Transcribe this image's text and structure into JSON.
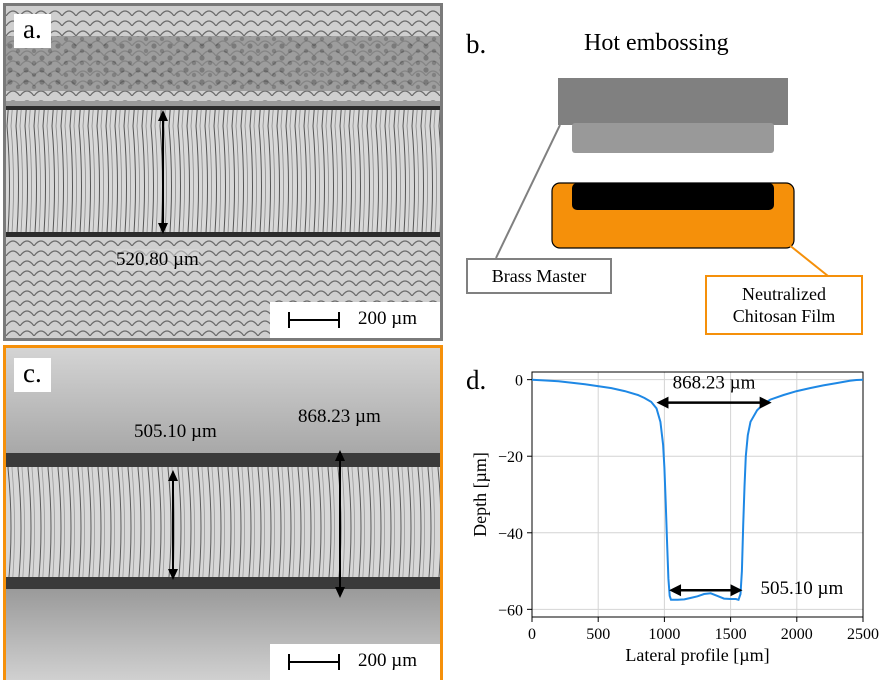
{
  "panel_a": {
    "letter": "a.",
    "measurement": "520.80 µm",
    "scale_label": "200 µm",
    "border_color": "#7a7a7a"
  },
  "panel_b": {
    "letter": "b.",
    "title": "Hot embossing",
    "label_master": "Brass Master",
    "label_film_line1": "Neutralized",
    "label_film_line2": "Chitosan Film",
    "master_color": "#808080",
    "film_color": "#f5900a",
    "mold_color": "#000000"
  },
  "panel_c": {
    "letter": "c.",
    "measurement_left": "505.10 µm",
    "measurement_right": "868.23 µm",
    "scale_label": "200 µm",
    "border_color": "#f5900a"
  },
  "panel_d": {
    "letter": "d."
  },
  "chart_data": {
    "type": "line",
    "xlabel": "Lateral profile [µm]",
    "ylabel": "Depth [µm]",
    "xlim": [
      0,
      2500
    ],
    "ylim": [
      -62,
      2
    ],
    "xticks": [
      0,
      500,
      1000,
      1500,
      2000,
      2500
    ],
    "yticks": [
      0,
      -20,
      -40,
      -60
    ],
    "grid": true,
    "line_color": "#1e88e5",
    "annotations": [
      {
        "text": "868.23 µm",
        "x1": 940,
        "x2": 1810,
        "y": -6
      },
      {
        "text": "505.10 µm",
        "x1": 1035,
        "x2": 1590,
        "y": -55
      }
    ],
    "series": [
      {
        "x": [
          0,
          200,
          400,
          600,
          700,
          800,
          850,
          900,
          940,
          970,
          990,
          1000,
          1010,
          1020,
          1030,
          1040,
          1050,
          1070,
          1100,
          1150,
          1200,
          1250,
          1300,
          1350,
          1400,
          1450,
          1500,
          1540,
          1560,
          1575,
          1585,
          1595,
          1605,
          1615,
          1630,
          1650,
          1700,
          1750,
          1800,
          1900,
          2000,
          2100,
          2200,
          2300,
          2400,
          2450,
          2500
        ],
        "y": [
          0,
          -0.4,
          -1.2,
          -2.2,
          -3,
          -4,
          -4.8,
          -5.8,
          -7.5,
          -11,
          -17,
          -23,
          -32,
          -42,
          -52,
          -56.5,
          -57.5,
          -57.5,
          -57.5,
          -57.4,
          -57,
          -56.6,
          -56,
          -55.8,
          -56.5,
          -57.2,
          -57.3,
          -57.3,
          -57.5,
          -56,
          -50,
          -38,
          -28,
          -20,
          -14.5,
          -11,
          -8,
          -6.3,
          -5.2,
          -4,
          -3,
          -2.2,
          -1.5,
          -0.9,
          -0.3,
          -0.1,
          0
        ]
      }
    ]
  }
}
